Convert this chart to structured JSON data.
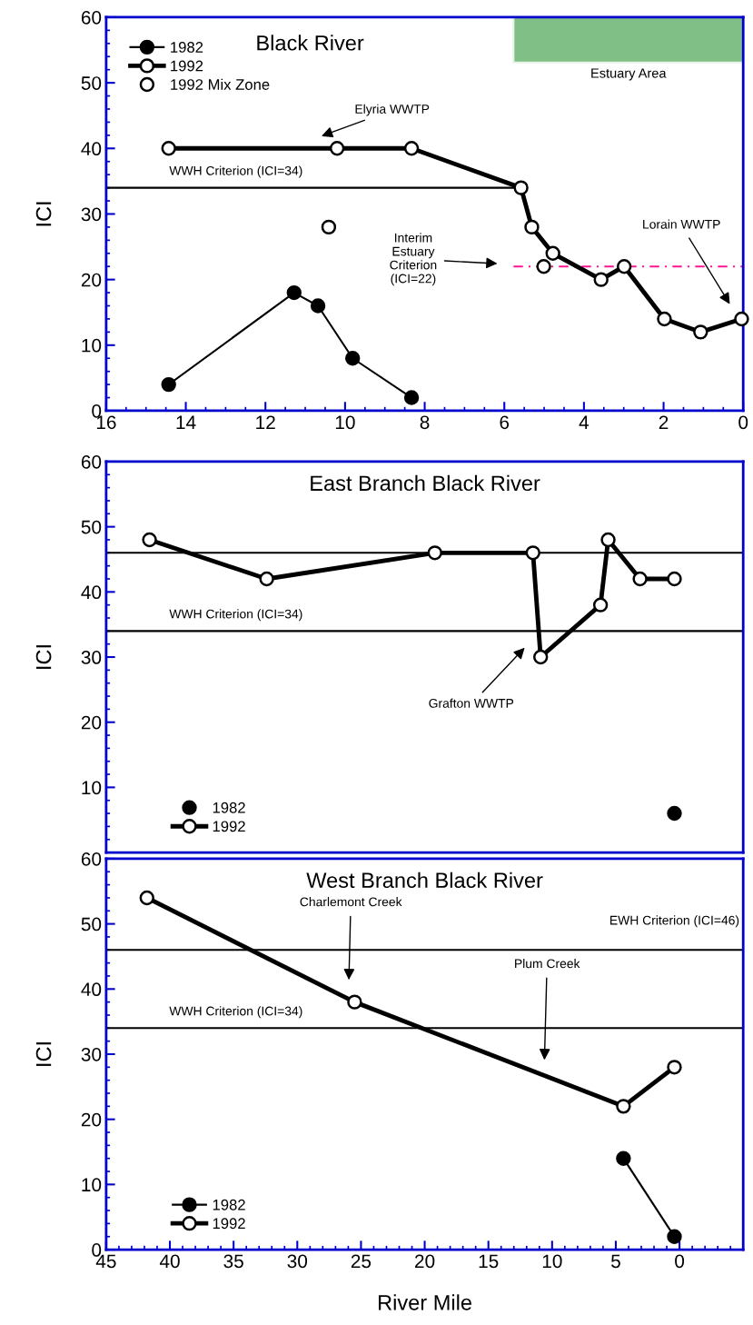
{
  "chart_data": [
    {
      "type": "line",
      "title": "Black River",
      "ylabel": "ICI",
      "xlim": [
        16,
        0
      ],
      "xticks": [
        16,
        14,
        12,
        10,
        8,
        6,
        4,
        2,
        0
      ],
      "ylim": [
        0,
        60
      ],
      "yticks": [
        0,
        10,
        20,
        30,
        40,
        50,
        60
      ],
      "legend": "top left",
      "marker": "circle",
      "grid": false,
      "series": [
        {
          "name": "1982",
          "color": "#000000",
          "x": [
            14.43,
            11.28,
            10.68,
            9.81,
            8.33
          ],
          "values": [
            4,
            18,
            16,
            8,
            2
          ]
        },
        {
          "name": "1992",
          "color": "#000000",
          "x": [
            14.43,
            10.2,
            8.33,
            5.58,
            5.31,
            4.78,
            3.57,
            2.99,
            1.98,
            1.07,
            0.04
          ],
          "values": [
            40,
            40,
            40,
            34,
            28,
            24,
            20,
            22,
            14,
            12,
            14
          ]
        },
        {
          "name": "1992 Mix Zone",
          "type": "scatter",
          "color": "#000000",
          "x": [
            10.41,
            5.01
          ],
          "values": [
            28,
            22
          ]
        }
      ],
      "ref_lines": [
        {
          "axis": "y",
          "value": 34,
          "label": "WWH Criterion (ICI=34)",
          "color": "#000000",
          "line_style": "solid"
        },
        {
          "axis": "y",
          "value": 22,
          "color": "#ff1493",
          "line_style": "dashed"
        }
      ],
      "bands": [
        {
          "axis": "x",
          "from": 5.77,
          "to": 0,
          "label": "Estuary Area",
          "color": "#80bf86"
        }
      ],
      "annotations": [
        "Elyria WWTP",
        "Interim\nEstuary\nCriterion\n(ICI=22)",
        "Lorain WWTP"
      ]
    },
    {
      "type": "line",
      "title": "East Branch Black River",
      "ylabel": "ICI",
      "xlim": [
        45,
        -5
      ],
      "ylim": [
        0,
        60
      ],
      "yticks": [
        10,
        20,
        30,
        40,
        50,
        60
      ],
      "tick_labels": "y",
      "legend": "bottom left",
      "marker": "circle",
      "grid": false,
      "series": [
        {
          "name": "1982",
          "type": "scatter",
          "color": "#000000",
          "x": [
            0.4
          ],
          "values": [
            6
          ]
        },
        {
          "name": "1992",
          "color": "#000000",
          "x": [
            41.6,
            32.4,
            19.2,
            11.5,
            10.9,
            6.2,
            5.6,
            3.1,
            0.4
          ],
          "values": [
            48,
            42,
            46,
            46,
            30,
            38,
            48,
            42,
            42
          ]
        }
      ],
      "ref_lines": [
        {
          "axis": "y",
          "value": 34,
          "label": "WWH Criterion (ICI=34)",
          "color": "#000000",
          "line_style": "solid"
        },
        {
          "axis": "y",
          "value": 46,
          "color": "#000000",
          "line_style": "solid"
        }
      ],
      "annotations": [
        "Grafton WWTP"
      ]
    },
    {
      "type": "line",
      "title": "West Branch Black River",
      "xlabel": "River Mile",
      "ylabel": "ICI",
      "xlim": [
        45,
        -5
      ],
      "xticks": [
        45,
        40,
        35,
        30,
        25,
        20,
        15,
        10,
        5,
        0
      ],
      "ylim": [
        0,
        60
      ],
      "yticks": [
        0,
        10,
        20,
        30,
        40,
        50,
        60
      ],
      "legend": "bottom left",
      "marker": "circle",
      "grid": false,
      "series": [
        {
          "name": "1982",
          "color": "#000000",
          "x": [
            4.4,
            0.4
          ],
          "values": [
            14,
            2
          ]
        },
        {
          "name": "1992",
          "color": "#000000",
          "x": [
            41.8,
            25.5,
            4.4,
            0.4
          ],
          "values": [
            54,
            38,
            22,
            28
          ]
        }
      ],
      "ref_lines": [
        {
          "axis": "y",
          "value": 34,
          "label": "WWH Criterion (ICI=34)",
          "color": "#000000",
          "line_style": "solid"
        },
        {
          "axis": "y",
          "value": 46,
          "label": "EWH Criterion (ICI=46)",
          "color": "#000000",
          "line_style": "solid"
        }
      ],
      "annotations": [
        "Charlemont Creek",
        "Plum Creek"
      ]
    }
  ]
}
